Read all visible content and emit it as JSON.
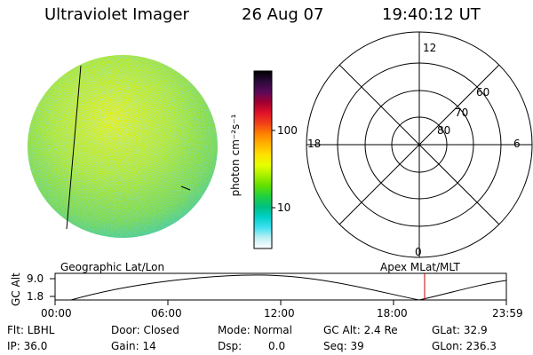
{
  "header": {
    "instrument": "Ultraviolet Imager",
    "date": "26 Aug 07",
    "time": "19:40:12 UT"
  },
  "colorbar": {
    "units_label": "photon cm⁻²s⁻¹",
    "ticks": [
      "100",
      "10"
    ],
    "colors": [
      "#000000",
      "#2b0a3a",
      "#5a0a5a",
      "#a00030",
      "#e0102a",
      "#f04018",
      "#ff8000",
      "#ffb400",
      "#ffe000",
      "#e8ff00",
      "#a8f000",
      "#60e000",
      "#20d040",
      "#00c080",
      "#00d0c8",
      "#40e0f0",
      "#c0f0f4",
      "#ffffff"
    ]
  },
  "polar": {
    "ring_labels": [
      "60",
      "70",
      "80"
    ],
    "mlt_labels": {
      "top": "12",
      "left": "18",
      "right": "6",
      "bottom": "0"
    }
  },
  "plot": {
    "ylabel": "GC Alt",
    "yticks": [
      "9.0",
      "1.8"
    ],
    "left_title": "Geographic Lat/Lon",
    "right_title": "Apex MLat/MLT",
    "xticks": [
      "00:00",
      "06:00",
      "12:00",
      "18:00",
      "23:59"
    ],
    "marker_color": "#c00000",
    "curve_color": "#000000"
  },
  "info": {
    "flt": "Flt: LBHL",
    "ip": "IP: 36.0",
    "door": "Door: Closed",
    "gain": "Gain: 14",
    "mode": "Mode: Normal",
    "dsp": "Dsp:",
    "dsp_value": "0.0",
    "gcalt": "GC Alt: 2.4 Re",
    "seq": "Seq: 39",
    "glat": "GLat:  32.9",
    "glon": "GLon: 236.3"
  }
}
